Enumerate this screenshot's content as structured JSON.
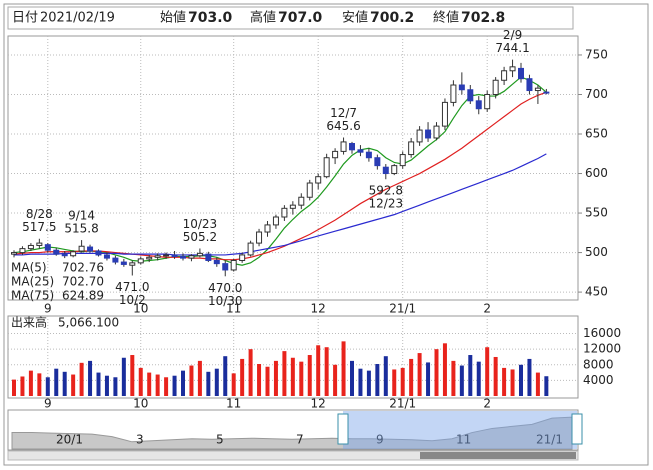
{
  "header": {
    "date_label": "日付",
    "date": "2021/02/19",
    "fields": [
      {
        "label": "始値",
        "value": "703.0",
        "color": "#222222"
      },
      {
        "label": "高値",
        "value": "707.0",
        "color": "#d41f1f"
      },
      {
        "label": "安値",
        "value": "700.2",
        "color": "#128a12"
      },
      {
        "label": "終値",
        "value": "702.8",
        "color": "#222222"
      }
    ]
  },
  "chart_data": {
    "type": "candlestick",
    "categories": [
      null,
      null,
      null,
      null,
      "9",
      null,
      null,
      null,
      null,
      null,
      null,
      null,
      null,
      null,
      null,
      "10",
      null,
      null,
      null,
      null,
      null,
      null,
      null,
      null,
      null,
      null,
      "11",
      null,
      null,
      null,
      null,
      null,
      null,
      null,
      null,
      null,
      "12",
      null,
      null,
      null,
      null,
      null,
      null,
      null,
      null,
      null,
      "21/1",
      null,
      null,
      null,
      null,
      null,
      null,
      null,
      null,
      null,
      "2",
      null,
      null,
      null,
      null,
      null,
      null,
      null
    ],
    "open": [
      498,
      500,
      505,
      509,
      510,
      503,
      498,
      496,
      502,
      507,
      502,
      497,
      493,
      488,
      484,
      487,
      492,
      494,
      496,
      497,
      495,
      493,
      496,
      498,
      490,
      486,
      478,
      490,
      497,
      512,
      526,
      535,
      545,
      556,
      560,
      570,
      588,
      596,
      620,
      628,
      638,
      630,
      627,
      620,
      608,
      600,
      610,
      624,
      640,
      655,
      645,
      660,
      690,
      712,
      706,
      692,
      682,
      700,
      718,
      730,
      733,
      720,
      705,
      703
    ],
    "high": [
      503,
      508,
      512,
      517.5,
      512,
      506,
      502,
      503,
      515.8,
      510,
      504,
      500,
      496,
      492,
      490,
      495,
      497,
      499,
      500,
      502,
      499,
      498,
      505.2,
      501,
      494,
      490,
      492,
      500,
      515,
      530,
      540,
      548,
      560,
      565,
      575,
      592,
      600,
      625,
      632,
      645.6,
      640,
      636,
      632,
      624,
      612,
      612,
      628,
      645,
      660,
      665,
      665,
      695,
      718,
      728,
      712,
      698,
      705,
      722,
      735,
      744.1,
      740,
      725,
      712,
      707
    ],
    "low": [
      494,
      497,
      502,
      505,
      500,
      496,
      493,
      494,
      500,
      500,
      495,
      490,
      485,
      482,
      471,
      485,
      488,
      490,
      492,
      492,
      490,
      489,
      494,
      488,
      482,
      470,
      476,
      487,
      495,
      508,
      520,
      530,
      540,
      548,
      555,
      566,
      580,
      594,
      612,
      624,
      625,
      622,
      615,
      605,
      592.8,
      598,
      606,
      620,
      635,
      640,
      642,
      655,
      685,
      700,
      688,
      675,
      678,
      695,
      712,
      722,
      715,
      700,
      688,
      700.2
    ],
    "close": [
      500,
      505,
      509,
      512,
      503,
      498,
      496,
      501,
      508,
      502,
      497,
      493,
      488,
      485,
      487,
      492,
      494,
      496,
      497,
      495,
      493,
      496,
      499,
      490,
      486,
      478,
      490,
      497,
      512,
      526,
      535,
      545,
      556,
      560,
      570,
      588,
      596,
      620,
      628,
      640,
      630,
      627,
      620,
      610,
      600,
      610,
      624,
      640,
      655,
      645,
      660,
      690,
      712,
      706,
      692,
      682,
      700,
      718,
      730,
      735,
      720,
      705,
      708,
      702.8
    ],
    "up_color": "#ffffff",
    "down_color": "#2a3cb4",
    "series": [
      {
        "name": "MA(5)",
        "color": "#1f9a1f",
        "last_label": "702.76",
        "values": [
          500,
          501,
          503,
          505,
          507,
          506,
          504,
          502,
          501,
          502,
          501,
          500,
          497,
          494,
          490,
          489,
          490,
          491,
          493,
          495,
          495,
          495,
          496,
          496,
          494,
          490,
          486,
          484,
          487,
          494,
          504,
          517,
          531,
          542,
          552,
          560,
          570,
          583,
          597,
          612,
          623,
          630,
          632,
          629,
          620,
          614,
          612,
          617,
          626,
          635,
          643,
          653,
          670,
          686,
          698,
          700,
          698,
          698,
          704,
          713,
          722,
          718,
          712,
          702.76
        ]
      },
      {
        "name": "MA(25)",
        "color": "#e02020",
        "last_label": "702.70",
        "values": [
          498,
          499,
          500,
          500,
          501,
          501,
          501,
          501,
          502,
          502,
          502,
          501,
          500,
          499,
          498,
          497,
          496,
          495,
          494,
          494,
          494,
          493,
          493,
          492,
          492,
          491,
          491,
          492,
          494,
          497,
          500,
          504,
          508,
          513,
          518,
          523,
          529,
          535,
          541,
          548,
          555,
          562,
          568,
          574,
          580,
          585,
          590,
          595,
          600,
          606,
          612,
          618,
          625,
          632,
          640,
          648,
          656,
          664,
          672,
          680,
          688,
          694,
          699,
          702.7
        ]
      },
      {
        "name": "MA(75)",
        "color": "#2a2ad0",
        "last_label": "624.89",
        "values": [
          497,
          497,
          498,
          498,
          498,
          498,
          499,
          499,
          499,
          499,
          499,
          499,
          499,
          498,
          498,
          498,
          498,
          498,
          498,
          497,
          497,
          497,
          497,
          497,
          497,
          497,
          498,
          499,
          501,
          503,
          505,
          507,
          509,
          512,
          515,
          518,
          521,
          524,
          527,
          530,
          533,
          536,
          539,
          542,
          545,
          548,
          552,
          556,
          560,
          564,
          568,
          572,
          576,
          580,
          584,
          588,
          592,
          596,
          600,
          604,
          609,
          614,
          619,
          624.89
        ]
      }
    ],
    "annotations": [
      {
        "date": "8/28",
        "value": 517.5,
        "label": "517.5"
      },
      {
        "date": "9/14",
        "value": 515.8,
        "label": "515.8"
      },
      {
        "date": "10/2",
        "value": 471,
        "label": "471.0"
      },
      {
        "date": "10/23",
        "value": 505.2,
        "label": "505.2"
      },
      {
        "date": "10/30",
        "value": 470,
        "label": "470.0"
      },
      {
        "date": "12/7",
        "value": 645.6,
        "label": "645.6"
      },
      {
        "date": "12/23",
        "value": 592.8,
        "label": "592.8"
      },
      {
        "date": "2/9",
        "value": 744.1,
        "label": "744.1"
      }
    ],
    "ylim": [
      440,
      774
    ],
    "yticks": [
      450,
      500,
      550,
      600,
      650,
      700,
      750
    ],
    "grid": true,
    "volume": {
      "title": "出来高",
      "last_label": "5,066.100",
      "up_color": "#e8231c",
      "down_color": "#1a2d9c",
      "values": [
        4200,
        5000,
        6500,
        5800,
        4800,
        7000,
        6200,
        5500,
        8500,
        9000,
        6000,
        5200,
        4800,
        9800,
        10500,
        7200,
        6000,
        5500,
        4800,
        5200,
        6500,
        7800,
        9000,
        6200,
        7000,
        10200,
        5800,
        9500,
        12000,
        8200,
        7500,
        9000,
        11500,
        9800,
        8800,
        10500,
        13000,
        12500,
        8000,
        14000,
        9000,
        7000,
        6500,
        8200,
        10200,
        6800,
        7200,
        9500,
        11000,
        8600,
        12000,
        13500,
        9000,
        7800,
        10500,
        8800,
        12500,
        10000,
        7200,
        6800,
        8000,
        9500,
        6000,
        5066.1
      ],
      "ylim": [
        0,
        20500
      ],
      "yticks": [
        4000,
        8000,
        12000,
        16000
      ]
    },
    "navigator": {
      "categories": [
        null,
        null,
        "20/1",
        null,
        null,
        null,
        "3",
        null,
        null,
        null,
        "5",
        null,
        null,
        null,
        "7",
        null,
        null,
        null,
        "9",
        null,
        null,
        null,
        "11",
        null,
        null,
        null,
        "21/1",
        null,
        null
      ],
      "values": [
        560,
        560,
        555,
        550,
        545,
        520,
        470,
        480,
        490,
        500,
        495,
        500,
        505,
        500,
        495,
        500,
        505,
        500,
        500,
        495,
        490,
        480,
        500,
        560,
        600,
        620,
        640,
        700,
        710
      ],
      "ylim": [
        400,
        760
      ],
      "color": "#c8c8c8"
    }
  }
}
